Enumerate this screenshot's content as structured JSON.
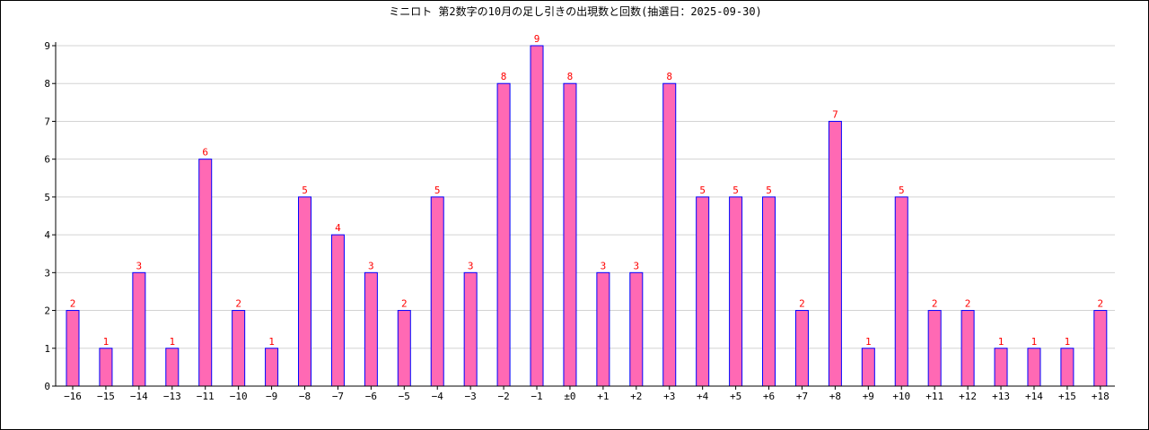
{
  "chart_data": {
    "type": "bar",
    "title": "ミニロト 第2数字の10月の足し引きの出現数と回数(抽選日：2025-09-30)",
    "xlabel": "",
    "ylabel": "",
    "categories": [
      "−16",
      "−15",
      "−14",
      "−13",
      "−11",
      "−10",
      "−9",
      "−8",
      "−7",
      "−6",
      "−5",
      "−4",
      "−3",
      "−2",
      "−1",
      "±0",
      "+1",
      "+2",
      "+3",
      "+4",
      "+5",
      "+6",
      "+7",
      "+8",
      "+9",
      "+10",
      "+11",
      "+12",
      "+13",
      "+14",
      "+15",
      "+18"
    ],
    "values": [
      2,
      1,
      3,
      1,
      6,
      2,
      1,
      5,
      4,
      3,
      2,
      5,
      3,
      8,
      9,
      8,
      3,
      3,
      8,
      5,
      5,
      5,
      2,
      7,
      1,
      5,
      2,
      2,
      1,
      1,
      1,
      2
    ],
    "ylim": [
      0,
      9
    ],
    "yticks": [
      0,
      1,
      2,
      3,
      4,
      5,
      6,
      7,
      8,
      9
    ],
    "grid": true,
    "legend": "none",
    "colors": {
      "bar_fill": "#ff69b4",
      "bar_stroke": "#0000ff",
      "data_label": "#ff0000",
      "grid": "#d3d3d3",
      "axis": "#000000"
    }
  }
}
